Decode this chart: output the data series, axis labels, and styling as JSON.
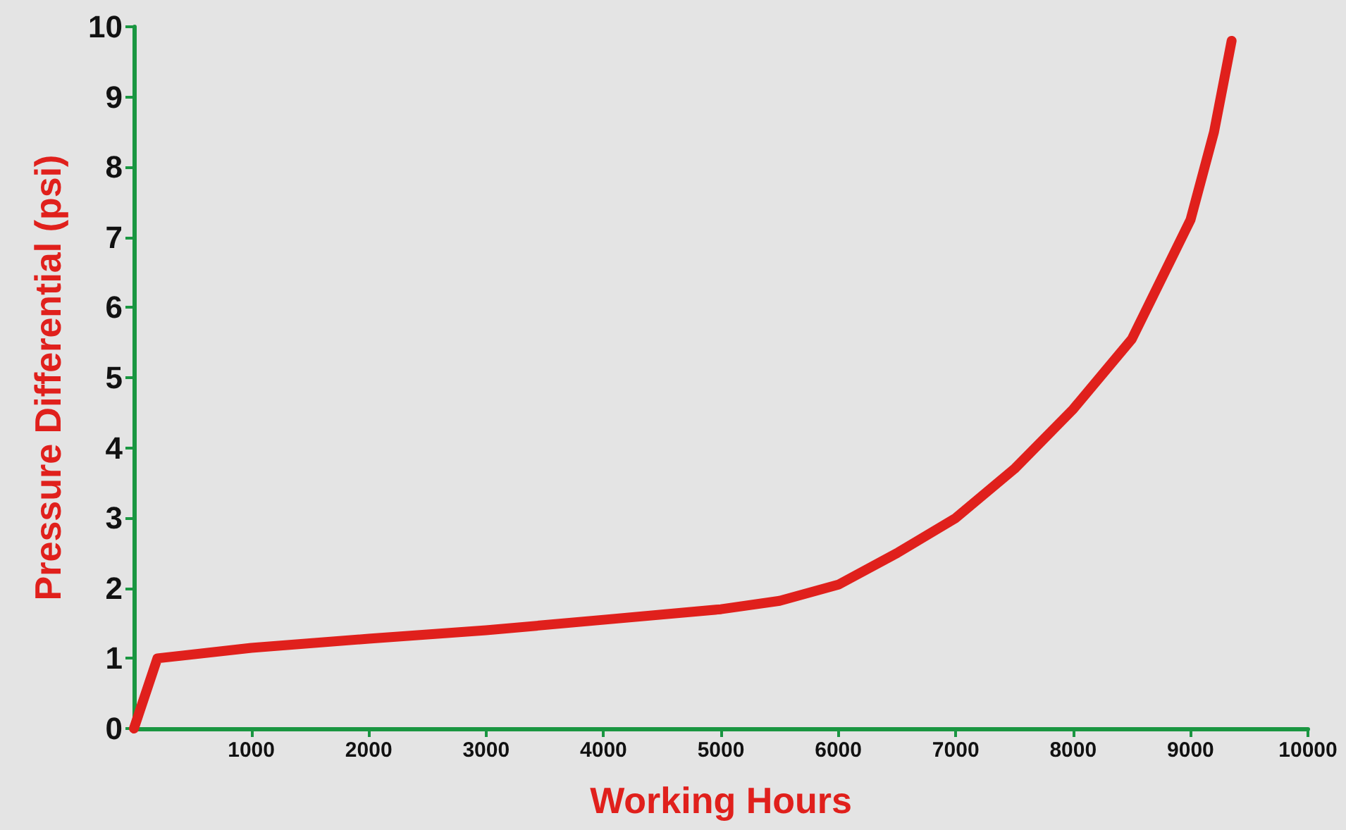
{
  "chart_data": {
    "type": "line",
    "xlabel": "Working Hours",
    "ylabel": "Pressure Differential (psi)",
    "x": [
      0,
      200,
      1000,
      2000,
      3000,
      4000,
      5000,
      5500,
      6000,
      6500,
      7000,
      7500,
      8000,
      8500,
      9000,
      9200,
      9350
    ],
    "series": [
      {
        "color": "#e0201c",
        "values": [
          0,
          1,
          1.15,
          1.28,
          1.4,
          1.55,
          1.7,
          1.82,
          2.05,
          2.5,
          3.0,
          3.7,
          4.55,
          5.55,
          7.25,
          8.5,
          9.8
        ]
      }
    ],
    "xlim": [
      0,
      10000
    ],
    "xticks": [
      1000,
      2000,
      3000,
      4000,
      5000,
      6000,
      7000,
      8000,
      9000,
      10000
    ],
    "ylim": [
      0,
      10
    ],
    "yticks": [
      0,
      1,
      2,
      3,
      4,
      5,
      6,
      7,
      8,
      9,
      10
    ],
    "grid": false,
    "line_style": "solid"
  }
}
